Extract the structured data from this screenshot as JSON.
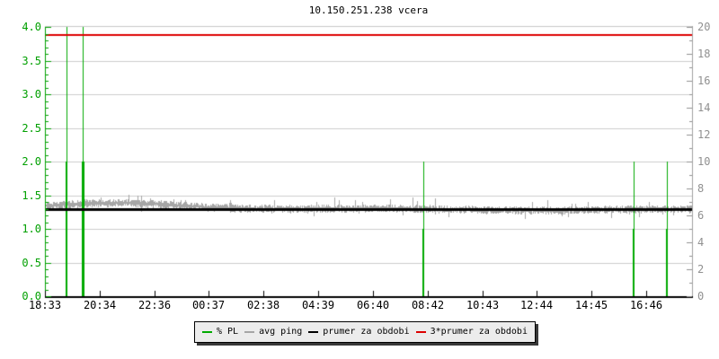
{
  "title": "10.150.251.238 vcera",
  "chart_data": {
    "type": "line",
    "title": "10.150.251.238 vcera",
    "x_axis": {
      "tick_labels": [
        "18:33",
        "20:34",
        "22:36",
        "00:37",
        "02:38",
        "04:39",
        "06:40",
        "08:42",
        "10:43",
        "12:44",
        "14:45",
        "16:46"
      ],
      "color": "#000000"
    },
    "left_axis": {
      "min": 0,
      "max": 4,
      "major_step": 0.5,
      "minor_step": 0.1,
      "tick_labels": [
        "4.0",
        "3.5",
        "3.0",
        "2.5",
        "2.0",
        "1.5",
        "1.0",
        "0.5",
        "0.0"
      ],
      "color": "#00a000"
    },
    "right_axis": {
      "min": 0,
      "max": 20,
      "major_step": 2,
      "minor_step": 1,
      "tick_labels": [
        "20",
        "18",
        "16",
        "14",
        "12",
        "10",
        "8",
        "6",
        "4",
        "2",
        "0"
      ],
      "color": "#909090"
    },
    "grid": {
      "horizontal": true,
      "vertical": false,
      "color": "#cdcdcd"
    },
    "frame": {
      "top_color": "#c8c8c8",
      "right_color": "#a0a0a0",
      "bottom_color": "#000000",
      "left_color": "#00a000"
    },
    "series": [
      {
        "name": "% PL",
        "type": "event-spikes",
        "color": "#00aa00",
        "axis": "left",
        "events": [
          {
            "x_frac": 0.0333,
            "peak": 4.0,
            "solid_to": 2.0,
            "solid_width": 2
          },
          {
            "x_frac": 0.0583,
            "peak": 4.0,
            "solid_to": 2.0,
            "solid_width": 3
          },
          {
            "x_frac": 0.5847,
            "peak": 2.0,
            "solid_to": 1.0,
            "solid_width": 2
          },
          {
            "x_frac": 0.9097,
            "peak": 2.0,
            "solid_to": 1.0,
            "solid_width": 2
          },
          {
            "x_frac": 0.9611,
            "peak": 2.0,
            "solid_to": 1.0,
            "solid_width": 2
          }
        ]
      },
      {
        "name": "avg ping",
        "type": "noisy-line",
        "color": "#a6a6a6",
        "axis": "left",
        "baseline": 1.3,
        "noise_halfband": 0.05,
        "hump": {
          "center_frac": 0.13,
          "width_frac": 0.1,
          "amplitude": 0.08
        },
        "up_spike_probability": 0.06,
        "up_spike_amplitude": 0.12,
        "down_spike_probability": 0.04,
        "down_spike_amplitude": 0.08,
        "end_drift": -0.02,
        "seed": 7
      },
      {
        "name": "prumer za obdobi",
        "type": "hline",
        "color": "#000000",
        "value": 1.29,
        "thickness": 3
      },
      {
        "name": "3*prumer za obdobi",
        "type": "hline",
        "color": "#dd0000",
        "value": 3.88,
        "thickness": 2
      }
    ]
  },
  "legend": {
    "items": [
      {
        "label": "% PL",
        "color": "#00aa00"
      },
      {
        "label": "avg ping",
        "color": "#a6a6a6"
      },
      {
        "label": "prumer za obdobi",
        "color": "#000000"
      },
      {
        "label": "3*prumer za obdobi",
        "color": "#dd0000"
      }
    ]
  }
}
